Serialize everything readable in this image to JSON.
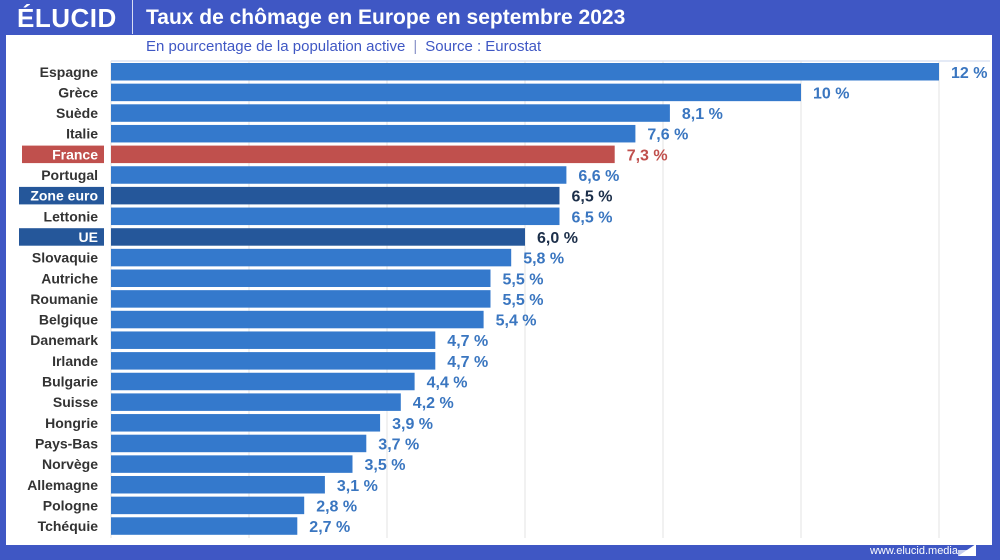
{
  "header": {
    "logo": "ÉLUCID",
    "title": "Taux de chômage en Europe en septembre 2023"
  },
  "subtitle": {
    "measure": "En pourcentage de la population active",
    "separator": "|",
    "source": "Source : Eurostat"
  },
  "footer": {
    "url": "www.elucid.media"
  },
  "colors": {
    "bar_default": "#3479cc",
    "bar_france": "#c0504d",
    "bar_aggregate": "#25579a",
    "label_default": "#3a76c0",
    "label_france": "#c0504d",
    "label_aggregate": "#1c2f4a",
    "background": "#3f57c4"
  },
  "chart_data": {
    "type": "bar",
    "orientation": "horizontal",
    "title": "Taux de chômage en Europe en septembre 2023",
    "subtitle": "En pourcentage de la population active | Source : Eurostat",
    "xlabel": "",
    "ylabel": "",
    "unit": "%",
    "xlim": [
      0,
      12
    ],
    "gridlines_at": [
      2,
      4,
      6,
      8,
      10,
      12
    ],
    "grid": true,
    "categories": [
      "Espagne",
      "Grèce",
      "Suède",
      "Italie",
      "France",
      "Portugal",
      "Zone euro",
      "Lettonie",
      "UE",
      "Slovaquie",
      "Autriche",
      "Roumanie",
      "Belgique",
      "Danemark",
      "Irlande",
      "Bulgarie",
      "Suisse",
      "Hongrie",
      "Pays-Bas",
      "Norvège",
      "Allemagne",
      "Pologne",
      "Tchéquie"
    ],
    "values": [
      12,
      10,
      8.1,
      7.6,
      7.3,
      6.6,
      6.5,
      6.5,
      6.0,
      5.8,
      5.5,
      5.5,
      5.4,
      4.7,
      4.7,
      4.4,
      4.2,
      3.9,
      3.7,
      3.5,
      3.1,
      2.8,
      2.7
    ],
    "value_labels": [
      "12 %",
      "10 %",
      "8,1 %",
      "7,6 %",
      "7,3 %",
      "6,6 %",
      "6,5 %",
      "6,5 %",
      "6,0 %",
      "5,8 %",
      "5,5 %",
      "5,5 %",
      "5,4 %",
      "4,7 %",
      "4,7 %",
      "4,4 %",
      "4,2 %",
      "3,9 %",
      "3,7 %",
      "3,5 %",
      "3,1 %",
      "2,8 %",
      "2,7 %"
    ],
    "highlight": {
      "France": "france",
      "Zone euro": "aggregate",
      "UE": "aggregate"
    }
  }
}
